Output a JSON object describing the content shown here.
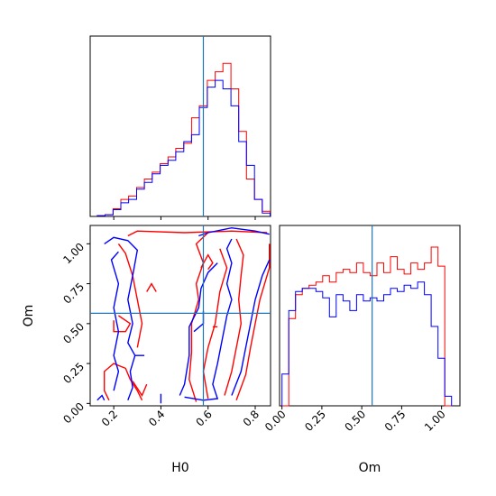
{
  "chart_data": {
    "type": "corner",
    "parameters": [
      "H0",
      "Om"
    ],
    "truths": {
      "H0": 0.58,
      "Om": 0.565
    },
    "colors": {
      "red": "#ff0000",
      "blue": "#0000ff",
      "truth": "#1f77b4"
    },
    "ranges": {
      "H0": [
        0.1,
        0.865
      ],
      "Om": [
        -0.015,
        1.115
      ]
    },
    "h0_ticks": [
      "0.2",
      "0.4",
      "0.6",
      "0.8"
    ],
    "h0_tick_values": [
      0.2,
      0.4,
      0.6,
      0.8
    ],
    "om_ticks": [
      "0.00",
      "0.25",
      "0.50",
      "0.75",
      "1.00"
    ],
    "om_tick_values": [
      0.0,
      0.25,
      0.5,
      0.75,
      1.0
    ],
    "xlabel_h0": "H0",
    "xlabel_om": "Om",
    "ylabel_om": "Om",
    "h0_hist": {
      "edges": [
        0.13,
        0.163,
        0.197,
        0.23,
        0.263,
        0.297,
        0.33,
        0.363,
        0.397,
        0.43,
        0.463,
        0.497,
        0.53,
        0.563,
        0.597,
        0.63,
        0.663,
        0.697,
        0.73,
        0.763,
        0.797,
        0.83,
        0.863
      ],
      "red": [
        0.005,
        0.01,
        0.045,
        0.1,
        0.12,
        0.17,
        0.22,
        0.26,
        0.31,
        0.35,
        0.4,
        0.43,
        0.58,
        0.65,
        0.8,
        0.85,
        0.9,
        0.75,
        0.5,
        0.22,
        0.1,
        0.03
      ],
      "blue": [
        0.005,
        0.01,
        0.04,
        0.08,
        0.1,
        0.16,
        0.2,
        0.25,
        0.3,
        0.33,
        0.38,
        0.44,
        0.48,
        0.64,
        0.76,
        0.8,
        0.75,
        0.65,
        0.44,
        0.3,
        0.1,
        0.02
      ]
    },
    "om_hist": {
      "edges": [
        0.0,
        0.0425,
        0.085,
        0.1275,
        0.17,
        0.2125,
        0.255,
        0.2975,
        0.34,
        0.3825,
        0.425,
        0.4675,
        0.51,
        0.5525,
        0.595,
        0.6375,
        0.68,
        0.7225,
        0.765,
        0.8075,
        0.85,
        0.8925,
        0.935,
        0.9775,
        1.02,
        1.0625
      ],
      "red": [
        0.0,
        0.55,
        0.7,
        0.74,
        0.76,
        0.78,
        0.82,
        0.78,
        0.84,
        0.86,
        0.84,
        0.9,
        0.84,
        0.82,
        0.9,
        0.84,
        0.94,
        0.86,
        0.83,
        0.9,
        0.86,
        0.9,
        1.0,
        0.88,
        0.0
      ],
      "blue": [
        0.2,
        0.6,
        0.72,
        0.74,
        0.74,
        0.72,
        0.68,
        0.56,
        0.7,
        0.66,
        0.6,
        0.7,
        0.66,
        0.68,
        0.66,
        0.7,
        0.74,
        0.72,
        0.76,
        0.74,
        0.78,
        0.7,
        0.5,
        0.3,
        0.06
      ]
    },
    "contours_red": [
      [
        [
          0.18,
          0.02
        ],
        [
          0.16,
          0.08
        ],
        [
          0.16,
          0.2
        ],
        [
          0.2,
          0.25
        ],
        [
          0.25,
          0.22
        ],
        [
          0.27,
          0.15
        ],
        [
          0.3,
          0.08
        ],
        [
          0.32,
          0.02
        ]
      ],
      [
        [
          0.2,
          0.52
        ],
        [
          0.2,
          0.45
        ],
        [
          0.25,
          0.45
        ],
        [
          0.27,
          0.5
        ],
        [
          0.22,
          0.55
        ]
      ],
      [
        [
          0.3,
          0.35
        ],
        [
          0.32,
          0.5
        ],
        [
          0.3,
          0.65
        ],
        [
          0.28,
          0.8
        ],
        [
          0.25,
          0.94
        ],
        [
          0.22,
          1.0
        ]
      ],
      [
        [
          0.26,
          1.05
        ],
        [
          0.3,
          1.08
        ],
        [
          0.5,
          1.07
        ],
        [
          0.7,
          1.08
        ],
        [
          0.85,
          1.07
        ]
      ],
      [
        [
          0.55,
          0.01
        ],
        [
          0.52,
          0.15
        ],
        [
          0.53,
          0.32
        ],
        [
          0.53,
          0.5
        ],
        [
          0.56,
          0.65
        ],
        [
          0.55,
          0.75
        ],
        [
          0.58,
          0.88
        ],
        [
          0.55,
          1.0
        ],
        [
          0.6,
          1.07
        ]
      ],
      [
        [
          0.6,
          0.03
        ],
        [
          0.58,
          0.2
        ],
        [
          0.6,
          0.35
        ],
        [
          0.63,
          0.5
        ],
        [
          0.65,
          0.7
        ],
        [
          0.68,
          0.85
        ],
        [
          0.65,
          0.97
        ]
      ],
      [
        [
          0.67,
          0.05
        ],
        [
          0.7,
          0.2
        ],
        [
          0.72,
          0.35
        ],
        [
          0.74,
          0.5
        ],
        [
          0.73,
          0.65
        ],
        [
          0.74,
          0.8
        ],
        [
          0.75,
          0.93
        ],
        [
          0.72,
          1.03
        ]
      ],
      [
        [
          0.72,
          0.02
        ],
        [
          0.76,
          0.18
        ],
        [
          0.78,
          0.35
        ],
        [
          0.8,
          0.5
        ],
        [
          0.82,
          0.65
        ],
        [
          0.86,
          0.85
        ],
        [
          0.86,
          1.0
        ]
      ],
      [
        [
          0.57,
          0.85
        ],
        [
          0.6,
          0.93
        ],
        [
          0.62,
          0.88
        ],
        [
          0.6,
          0.84
        ]
      ],
      [
        [
          0.34,
          0.7
        ],
        [
          0.36,
          0.75
        ],
        [
          0.38,
          0.7
        ]
      ],
      [
        [
          0.62,
          0.48
        ],
        [
          0.64,
          0.48
        ]
      ],
      [
        [
          0.28,
          0.14
        ],
        [
          0.32,
          0.05
        ],
        [
          0.34,
          0.12
        ]
      ]
    ],
    "contours_blue": [
      [
        [
          0.13,
          0.02
        ],
        [
          0.15,
          0.05
        ],
        [
          0.16,
          0.02
        ]
      ],
      [
        [
          0.16,
          1.0
        ],
        [
          0.2,
          1.04
        ],
        [
          0.26,
          1.02
        ],
        [
          0.3,
          0.96
        ],
        [
          0.28,
          0.8
        ],
        [
          0.26,
          0.65
        ],
        [
          0.28,
          0.5
        ],
        [
          0.26,
          0.38
        ],
        [
          0.29,
          0.3
        ],
        [
          0.33,
          0.3
        ]
      ],
      [
        [
          0.22,
          0.95
        ],
        [
          0.19,
          0.9
        ],
        [
          0.22,
          0.75
        ],
        [
          0.2,
          0.6
        ],
        [
          0.22,
          0.45
        ],
        [
          0.2,
          0.3
        ],
        [
          0.22,
          0.2
        ],
        [
          0.2,
          0.08
        ]
      ],
      [
        [
          0.29,
          0.3
        ],
        [
          0.27,
          0.2
        ],
        [
          0.28,
          0.1
        ],
        [
          0.26,
          0.02
        ]
      ],
      [
        [
          0.4,
          0.0
        ],
        [
          0.4,
          0.06
        ]
      ],
      [
        [
          0.48,
          0.05
        ],
        [
          0.5,
          0.12
        ],
        [
          0.52,
          0.3
        ],
        [
          0.52,
          0.48
        ],
        [
          0.56,
          0.6
        ],
        [
          0.57,
          0.72
        ],
        [
          0.6,
          0.82
        ],
        [
          0.64,
          0.88
        ]
      ],
      [
        [
          0.5,
          0.04
        ],
        [
          0.58,
          0.02
        ],
        [
          0.64,
          0.03
        ],
        [
          0.62,
          0.12
        ],
        [
          0.64,
          0.25
        ],
        [
          0.66,
          0.4
        ],
        [
          0.68,
          0.55
        ],
        [
          0.7,
          0.65
        ],
        [
          0.68,
          0.75
        ],
        [
          0.7,
          0.88
        ],
        [
          0.68,
          0.97
        ],
        [
          0.7,
          1.03
        ]
      ],
      [
        [
          0.7,
          0.05
        ],
        [
          0.74,
          0.2
        ],
        [
          0.76,
          0.35
        ],
        [
          0.78,
          0.5
        ],
        [
          0.8,
          0.65
        ],
        [
          0.83,
          0.8
        ],
        [
          0.86,
          0.9
        ]
      ],
      [
        [
          0.56,
          1.05
        ],
        [
          0.6,
          1.07
        ],
        [
          0.7,
          1.1
        ],
        [
          0.8,
          1.08
        ],
        [
          0.86,
          1.06
        ]
      ],
      [
        [
          0.54,
          0.45
        ],
        [
          0.58,
          0.5
        ],
        [
          0.58,
          0.58
        ]
      ]
    ]
  }
}
